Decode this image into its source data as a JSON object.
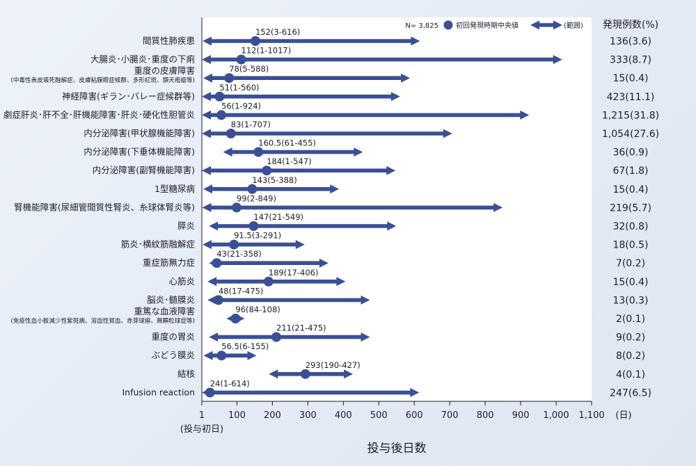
{
  "chart_data": {
    "type": "range",
    "rows": [
      {
        "label": "間質性肺疾患",
        "note": "",
        "median": 152,
        "min": 3,
        "max": 616,
        "value_label": "152(3-616)",
        "count": "136(3.6)"
      },
      {
        "label": "大腸炎･小腸炎･重度の下痢",
        "note": "",
        "median": 112,
        "min": 1,
        "max": 1017,
        "value_label": "112(1-1017)",
        "count": "333(8.7)"
      },
      {
        "label": "重度の皮膚障害",
        "note": "(中毒性表皮壊死融解症、皮膚粘膜眼症候群、多形紅斑、類天疱瘡等)",
        "median": 78,
        "min": 5,
        "max": 588,
        "value_label": "78(5-588)",
        "count": "15(0.4)"
      },
      {
        "label": "神経障害(ギラン･バレー症候群等)",
        "note": "",
        "median": 51,
        "min": 1,
        "max": 560,
        "value_label": "51(1-560)",
        "count": "423(11.1)"
      },
      {
        "label": "劇症肝炎･肝不全･肝機能障害･肝炎･硬化性胆管炎",
        "note": "",
        "median": 56,
        "min": 1,
        "max": 924,
        "value_label": "56(1-924)",
        "count": "1,215(31.8)"
      },
      {
        "label": "内分泌障害(甲状腺機能障害)",
        "note": "",
        "median": 83,
        "min": 1,
        "max": 707,
        "value_label": "83(1-707)",
        "count": "1,054(27.6)"
      },
      {
        "label": "内分泌障害(下垂体機能障害)",
        "note": "",
        "median": 160.5,
        "min": 61,
        "max": 455,
        "value_label": "160.5(61-455)",
        "count": "36(0.9)"
      },
      {
        "label": "内分泌障害(副腎機能障害)",
        "note": "",
        "median": 184,
        "min": 1,
        "max": 547,
        "value_label": "184(1-547)",
        "count": "67(1.8)"
      },
      {
        "label": "1型糖尿病",
        "note": "",
        "median": 143,
        "min": 5,
        "max": 388,
        "value_label": "143(5-388)",
        "count": "15(0.4)"
      },
      {
        "label": "腎機能障害(尿細管間質性腎炎、糸球体腎炎等)",
        "note": "",
        "median": 99,
        "min": 2,
        "max": 849,
        "value_label": "99(2-849)",
        "count": "219(5.7)"
      },
      {
        "label": "膵炎",
        "note": "",
        "median": 147,
        "min": 21,
        "max": 549,
        "value_label": "147(21-549)",
        "count": "32(0.8)"
      },
      {
        "label": "筋炎･横紋筋融解症",
        "note": "",
        "median": 91.5,
        "min": 3,
        "max": 291,
        "value_label": "91.5(3-291)",
        "count": "18(0.5)"
      },
      {
        "label": "重症筋無力症",
        "note": "",
        "median": 43,
        "min": 21,
        "max": 358,
        "value_label": "43(21-358)",
        "count": "7(0.2)"
      },
      {
        "label": "心筋炎",
        "note": "",
        "median": 189,
        "min": 17,
        "max": 406,
        "value_label": "189(17-406)",
        "count": "15(0.4)"
      },
      {
        "label": "脳炎･髄膜炎",
        "note": "",
        "median": 48,
        "min": 17,
        "max": 475,
        "value_label": "48(17-475)",
        "count": "13(0.3)"
      },
      {
        "label": "重篤な血液障害",
        "note": "(免疫性血小板減少性紫斑病、溶血性貧血、赤芽球癆、無顆粒球症等)",
        "median": 96,
        "min": 84,
        "max": 108,
        "value_label": "96(84-108)",
        "count": "2(0.1)"
      },
      {
        "label": "重度の胃炎",
        "note": "",
        "median": 211,
        "min": 21,
        "max": 475,
        "value_label": "211(21-475)",
        "count": "9(0.2)"
      },
      {
        "label": "ぶどう膜炎",
        "note": "",
        "median": 56.5,
        "min": 6,
        "max": 155,
        "value_label": "56.5(6-155)",
        "count": "8(0.2)"
      },
      {
        "label": "結核",
        "note": "",
        "median": 293,
        "min": 190,
        "max": 427,
        "value_label": "293(190-427)",
        "count": "4(0.1)"
      },
      {
        "label": "Infusion reaction",
        "note": "",
        "median": 24,
        "min": 1,
        "max": 614,
        "value_label": "24(1-614)",
        "count": "247(6.5)"
      }
    ],
    "x_ticks": [
      1,
      100,
      200,
      300,
      400,
      500,
      600,
      700,
      800,
      900,
      1000,
      1100
    ],
    "x_tick_labels": [
      "1",
      "100",
      "200",
      "300",
      "400",
      "500",
      "600",
      "700",
      "800",
      "900",
      "1,000",
      "1,100"
    ],
    "x_unit": "(日)",
    "x_first_note": "(投与初日)",
    "xlabel": "投与後日数",
    "xlim": [
      1,
      1100
    ],
    "count_header": "発現例数(%)",
    "legend": {
      "n": "N= 3,825",
      "median": "初回発現時期中央値",
      "range": "(範囲)"
    },
    "colors": {
      "mark": "#3a4f96",
      "axis": "#1c1c2a",
      "panel": "#ffffff"
    }
  }
}
